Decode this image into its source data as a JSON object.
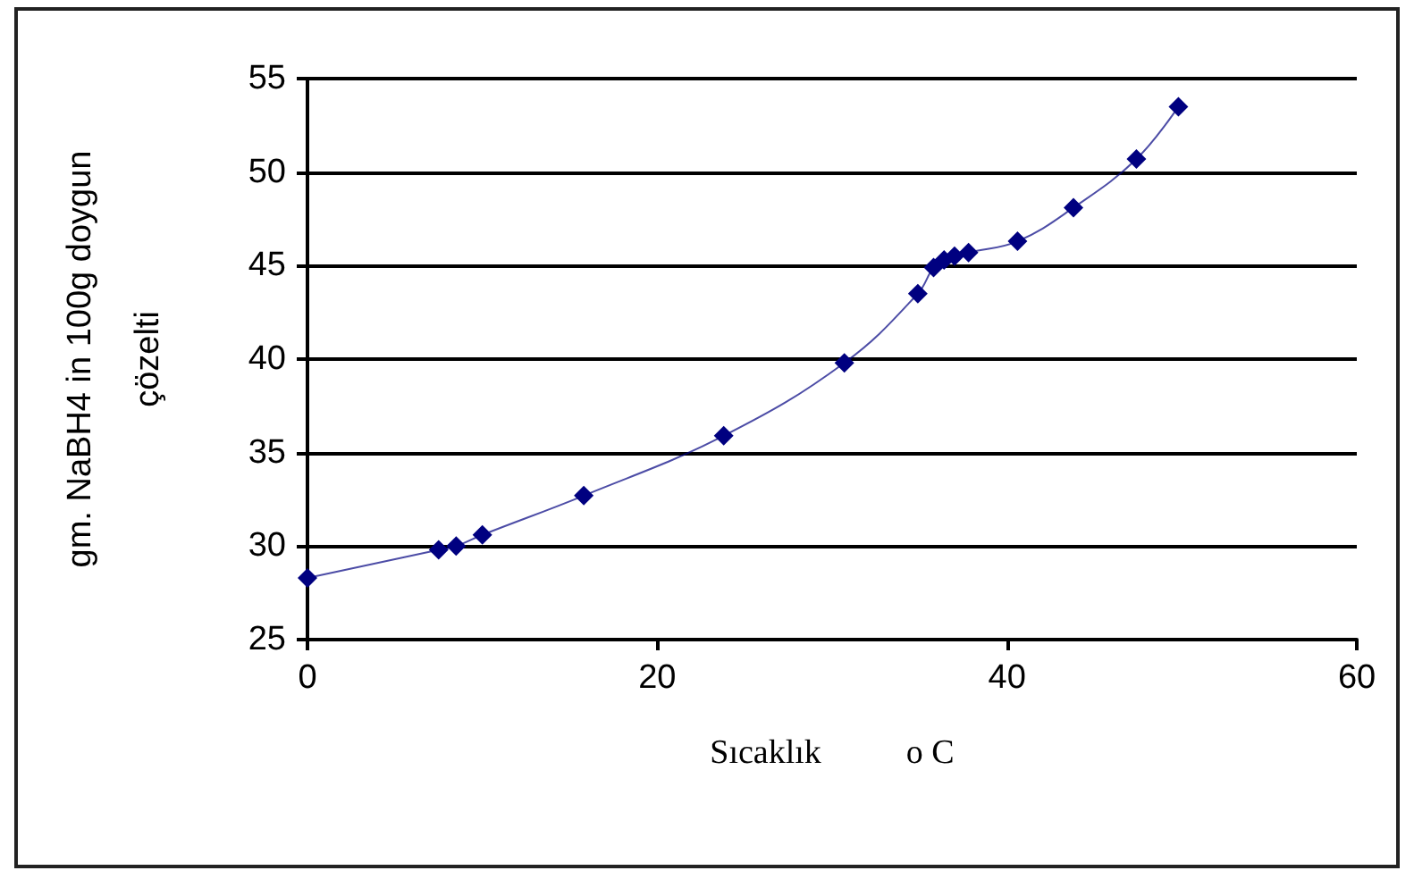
{
  "chart_data": {
    "type": "line",
    "xlabel": "Sıcaklık          o C",
    "ylabel": "gm. NaBH4 in 100g doygun\nçözelti",
    "x": [
      0,
      7.5,
      8.5,
      10.0,
      15.8,
      23.8,
      30.7,
      34.9,
      35.8,
      36.4,
      37.0,
      37.8,
      40.6,
      43.8,
      47.4,
      49.8
    ],
    "series": [
      {
        "color": "#000080",
        "values": [
          28.3,
          29.8,
          30.0,
          30.6,
          32.7,
          35.9,
          39.8,
          43.5,
          44.9,
          45.3,
          45.5,
          45.7,
          46.3,
          48.1,
          50.7,
          53.5
        ]
      }
    ],
    "xlim": [
      0,
      60
    ],
    "xticks": [
      0,
      20,
      40,
      60
    ],
    "ylim": [
      25,
      55
    ],
    "yticks": [
      25,
      30,
      35,
      40,
      45,
      50,
      55
    ],
    "grid": "y",
    "marker": "diamond",
    "line_style": "solid"
  }
}
